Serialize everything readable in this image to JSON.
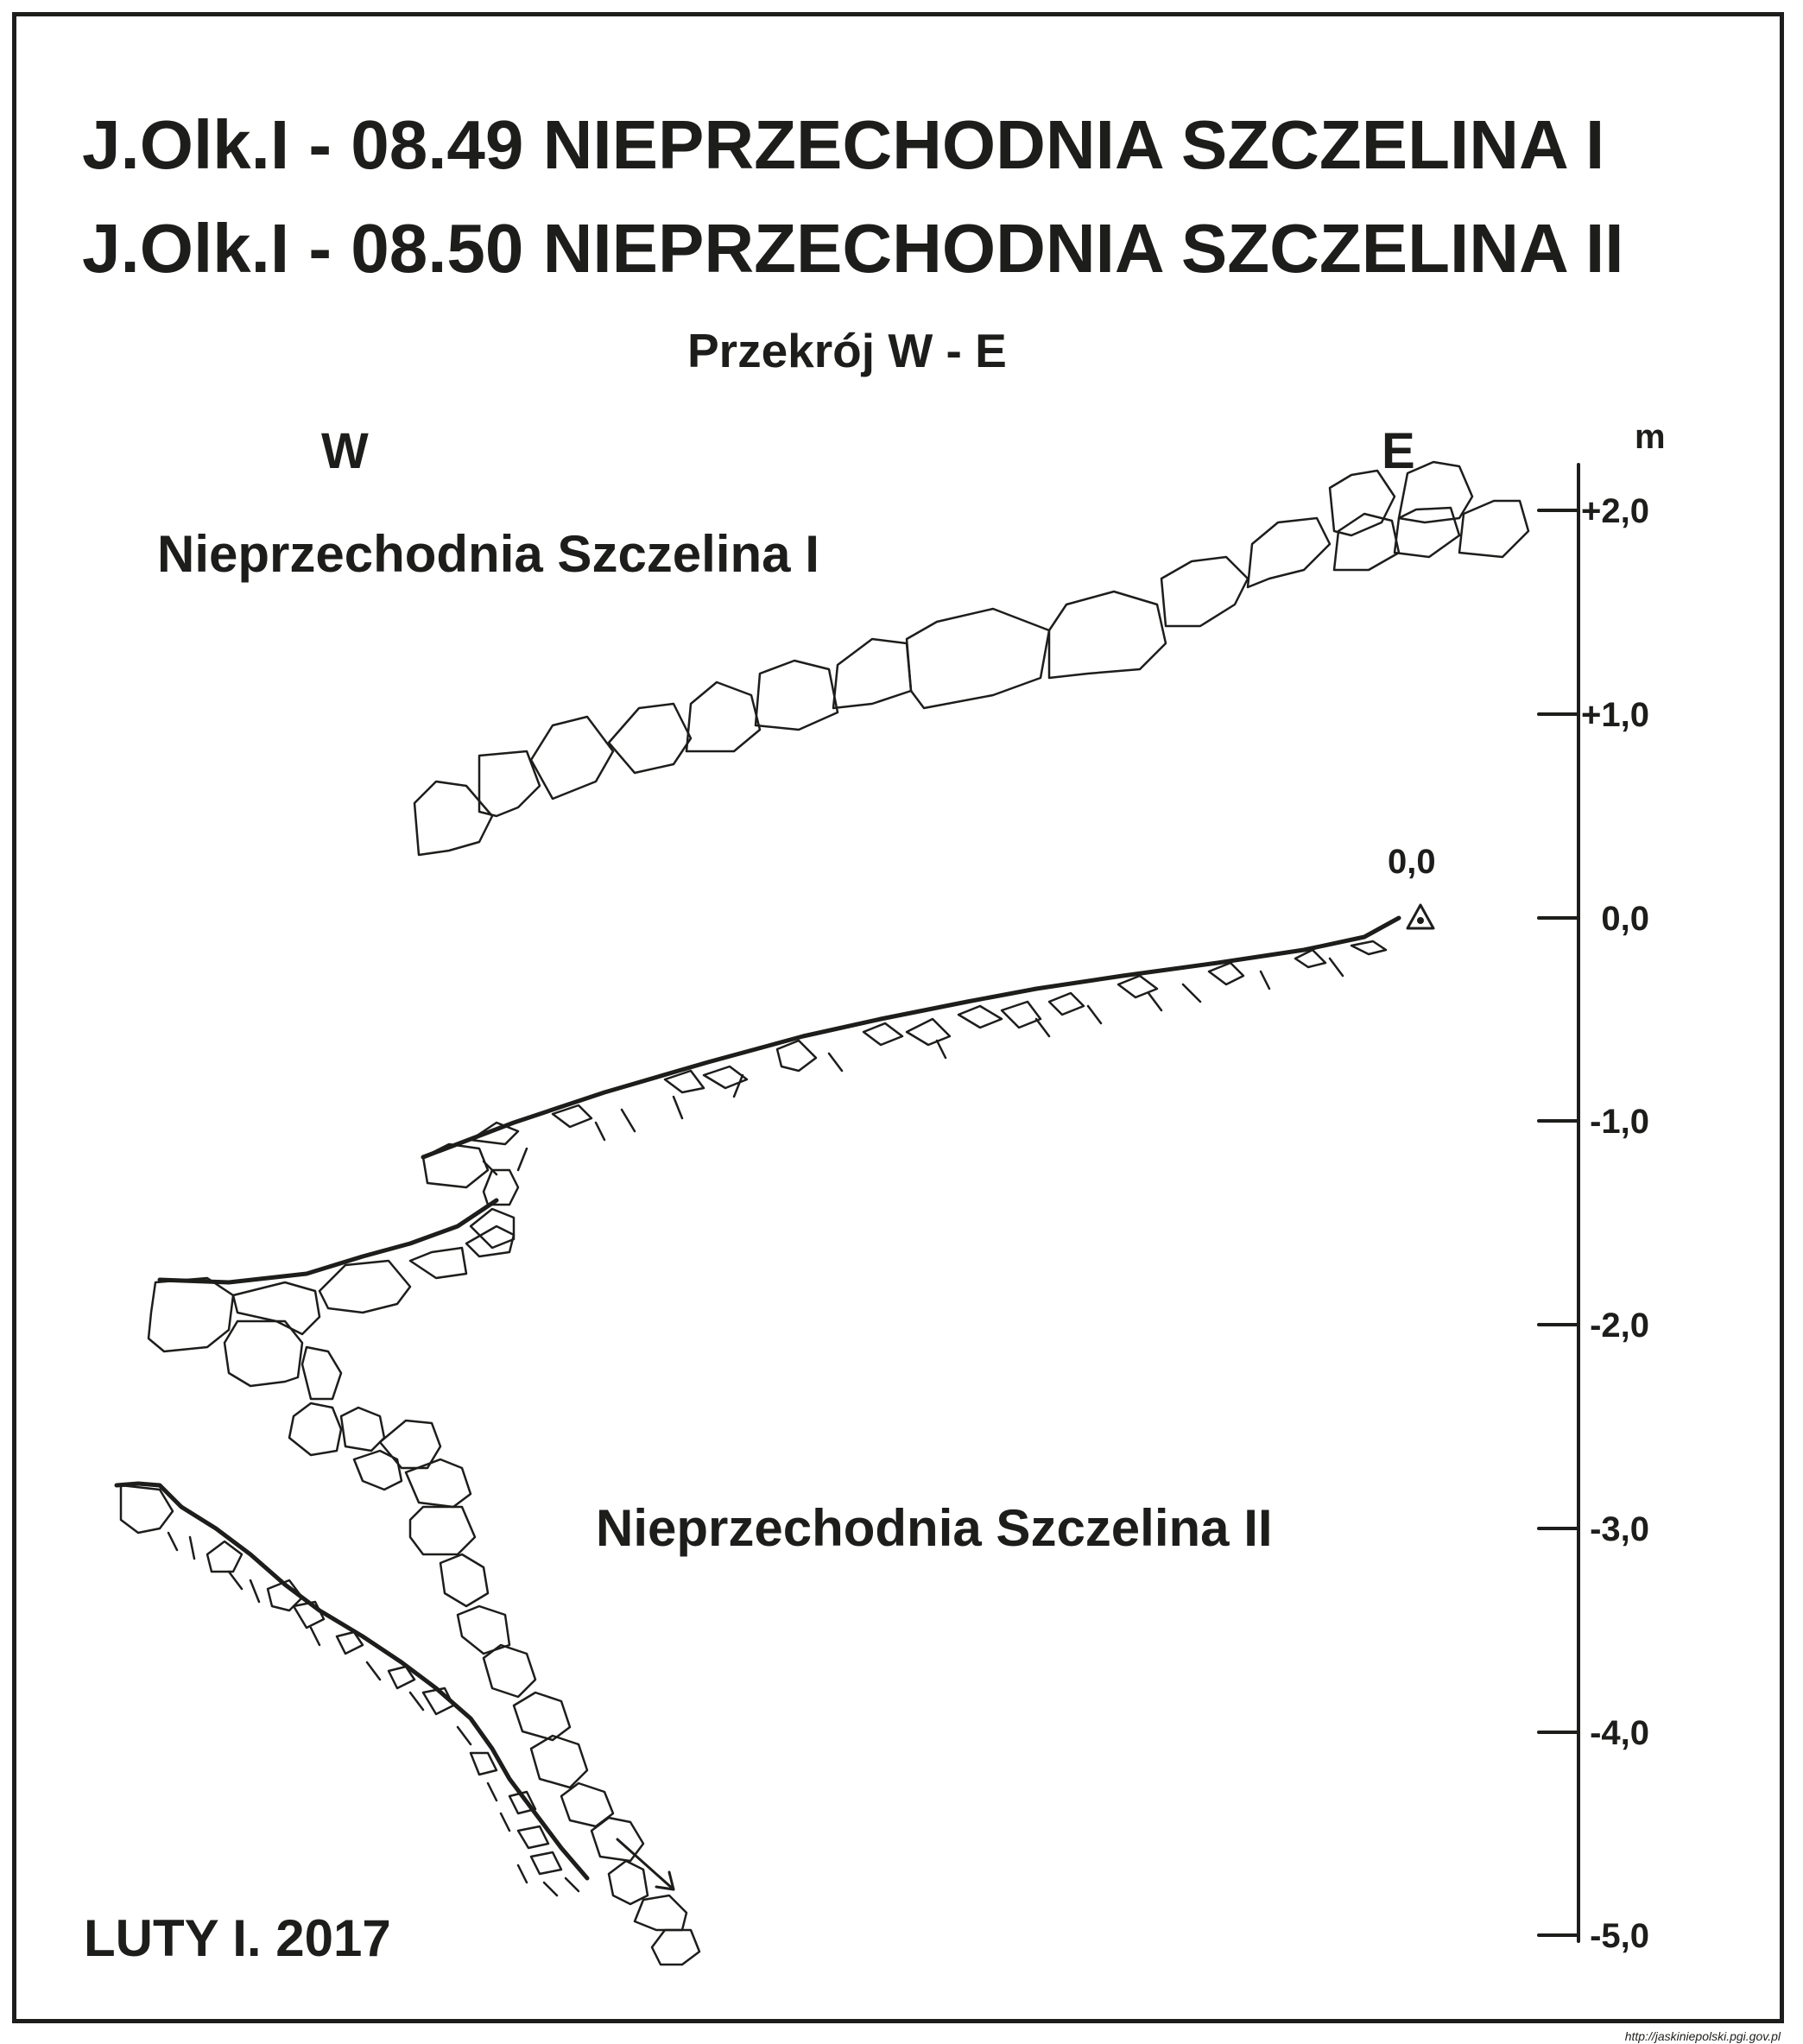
{
  "title": {
    "line1": "J.Olk.I - 08.49  NIEPRZECHODNIA SZCZELINA I",
    "line2": "J.Olk.I - 08.50  NIEPRZECHODNIA SZCZELINA II"
  },
  "subtitle": "Przekrój W - E",
  "directions": {
    "west": "W",
    "east": "E"
  },
  "labels": {
    "cave1": "Nieprzechodnia Szczelina I",
    "cave2": "Nieprzechodnia Szczelina II",
    "datum": "0,0"
  },
  "scale": {
    "unit": "m",
    "ticks": [
      "+2,0",
      "+1,0",
      "0,0",
      "-1,0",
      "-2,0",
      "-3,0",
      "-4,0",
      "-5,0"
    ]
  },
  "date": "LUTY I. 2017",
  "credit": "http://jaskiniepolski.pgi.gov.pl",
  "colors": {
    "ink": "#1d1d1b",
    "background": "#ffffff"
  }
}
